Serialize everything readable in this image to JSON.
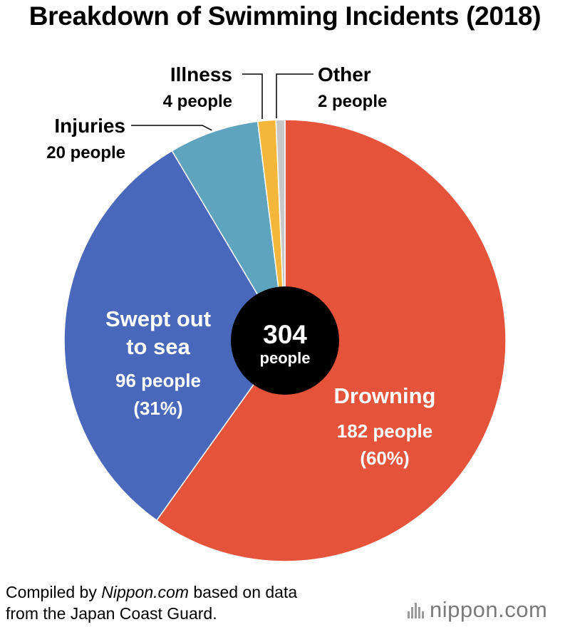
{
  "title": "Breakdown of Swimming Incidents (2018)",
  "center": {
    "value": "304",
    "unit": "people"
  },
  "footer": {
    "pre": "Compiled by ",
    "source": "Nippon.com",
    "post": " based on data",
    "line2": "from the Japan Coast Guard."
  },
  "logo": {
    "brand": "nippon",
    "domain": ".com"
  },
  "colors": {
    "drowning": "#E5533A",
    "swept": "#4A68BB",
    "injuries": "#5FA4BE",
    "illness": "#F5B73B",
    "other": "#C8C8C8",
    "center": "#000000",
    "label_light": "#FFFFFF",
    "label_dark": "#000000"
  },
  "chart_data": {
    "type": "pie",
    "title": "Breakdown of Swimming Incidents (2018)",
    "total": 304,
    "slices": [
      {
        "name": "Drowning",
        "value": 182,
        "value_label": "182 people",
        "percent": 60,
        "percent_label": "(60%)",
        "color": "#E5533A"
      },
      {
        "name": "Swept out to sea",
        "name_lines": [
          "Swept out",
          "to sea"
        ],
        "value": 96,
        "value_label": "96 people",
        "percent": 31,
        "percent_label": "(31%)",
        "color": "#4A68BB"
      },
      {
        "name": "Injuries",
        "value": 20,
        "value_label": "20 people",
        "color": "#5FA4BE"
      },
      {
        "name": "Illness",
        "value": 4,
        "value_label": "4 people",
        "color": "#F5B73B"
      },
      {
        "name": "Other",
        "value": 2,
        "value_label": "2 people",
        "color": "#C8C8C8"
      }
    ]
  }
}
